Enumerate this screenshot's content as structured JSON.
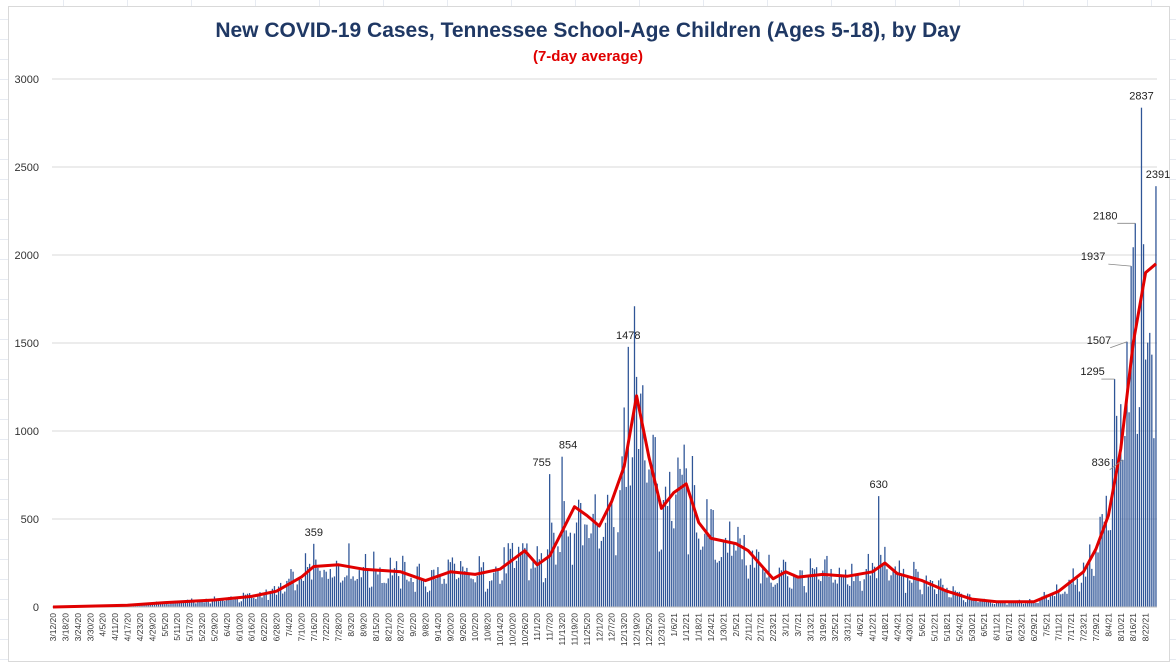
{
  "chart_data": {
    "type": "bar",
    "title": "New COVID-19 Cases, Tennessee School-Age Children (Ages 5-18), by Day",
    "subtitle": "(7-day average)",
    "xlabel": "",
    "ylabel": "",
    "ylim": [
      0,
      3000
    ],
    "yticks": [
      0,
      500,
      1000,
      1500,
      2000,
      2500,
      3000
    ],
    "grid": true,
    "legend": "none",
    "x_start": "3/12/20",
    "x_end": "8/27/21",
    "x_tick_labels": [
      "3/12/20",
      "3/18/20",
      "3/24/20",
      "3/30/20",
      "4/5/20",
      "4/11/20",
      "4/17/20",
      "4/23/20",
      "4/29/20",
      "5/5/20",
      "5/11/20",
      "5/17/20",
      "5/23/20",
      "5/29/20",
      "6/4/20",
      "6/10/20",
      "6/16/20",
      "6/22/20",
      "6/28/20",
      "7/4/20",
      "7/10/20",
      "7/16/20",
      "7/22/20",
      "7/28/20",
      "8/3/20",
      "8/9/20",
      "8/15/20",
      "8/21/20",
      "8/27/20",
      "9/2/20",
      "9/8/20",
      "9/14/20",
      "9/20/20",
      "9/26/20",
      "10/2/20",
      "10/8/20",
      "10/14/20",
      "10/20/20",
      "10/26/20",
      "11/1/20",
      "11/7/20",
      "11/13/20",
      "11/19/20",
      "11/25/20",
      "12/1/20",
      "12/7/20",
      "12/13/20",
      "12/19/20",
      "12/25/20",
      "12/31/20",
      "1/6/21",
      "1/12/21",
      "1/18/21",
      "1/24/21",
      "1/30/21",
      "2/5/21",
      "2/11/21",
      "2/17/21",
      "2/23/21",
      "3/1/21",
      "3/7/21",
      "3/13/21",
      "3/19/21",
      "3/25/21",
      "3/31/21",
      "4/6/21",
      "4/12/21",
      "4/18/21",
      "4/24/21",
      "4/30/21",
      "5/6/21",
      "5/12/21",
      "5/18/21",
      "5/24/21",
      "5/30/21",
      "6/5/21",
      "6/11/21",
      "6/17/21",
      "6/23/21",
      "6/29/21",
      "7/5/21",
      "7/11/21",
      "7/17/21",
      "7/23/21",
      "7/29/21",
      "8/4/21",
      "8/10/21",
      "8/16/21",
      "8/22/21"
    ],
    "daily_profile": [
      [
        "3/12/20",
        0
      ],
      [
        "3/30/20",
        5
      ],
      [
        "4/17/20",
        10
      ],
      [
        "5/5/20",
        25
      ],
      [
        "5/29/20",
        40
      ],
      [
        "6/16/20",
        60
      ],
      [
        "6/28/20",
        90
      ],
      [
        "7/10/20",
        170
      ],
      [
        "7/16/20",
        230
      ],
      [
        "7/22/20",
        235
      ],
      [
        "7/28/20",
        240
      ],
      [
        "8/9/20",
        215
      ],
      [
        "8/27/20",
        200
      ],
      [
        "9/8/20",
        150
      ],
      [
        "9/20/20",
        200
      ],
      [
        "10/2/20",
        185
      ],
      [
        "10/14/20",
        215
      ],
      [
        "10/26/20",
        320
      ],
      [
        "11/1/20",
        240
      ],
      [
        "11/7/20",
        290
      ],
      [
        "11/19/20",
        570
      ],
      [
        "11/25/20",
        520
      ],
      [
        "12/1/20",
        460
      ],
      [
        "12/7/20",
        600
      ],
      [
        "12/13/20",
        800
      ],
      [
        "12/19/20",
        1200
      ],
      [
        "12/25/20",
        850
      ],
      [
        "12/31/20",
        560
      ],
      [
        "1/6/21",
        650
      ],
      [
        "1/12/21",
        700
      ],
      [
        "1/18/21",
        480
      ],
      [
        "1/24/21",
        390
      ],
      [
        "2/5/21",
        360
      ],
      [
        "2/11/21",
        320
      ],
      [
        "2/23/21",
        160
      ],
      [
        "3/1/21",
        200
      ],
      [
        "3/7/21",
        170
      ],
      [
        "3/19/21",
        185
      ],
      [
        "3/31/21",
        175
      ],
      [
        "4/12/21",
        200
      ],
      [
        "4/18/21",
        250
      ],
      [
        "4/24/21",
        190
      ],
      [
        "5/6/21",
        150
      ],
      [
        "5/18/21",
        90
      ],
      [
        "5/30/21",
        45
      ],
      [
        "6/11/21",
        30
      ],
      [
        "6/29/21",
        30
      ],
      [
        "7/11/21",
        90
      ],
      [
        "7/23/21",
        200
      ],
      [
        "7/29/21",
        330
      ],
      [
        "8/4/21",
        520
      ],
      [
        "8/10/21",
        900
      ],
      [
        "8/16/21",
        1500
      ],
      [
        "8/22/21",
        1900
      ],
      [
        "8/27/21",
        1950
      ]
    ],
    "daily_spikes": [
      [
        "7/16/20",
        359
      ],
      [
        "11/7/20",
        755
      ],
      [
        "11/13/20",
        854
      ],
      [
        "12/15/20",
        1478
      ],
      [
        "4/15/21",
        630
      ],
      [
        "8/7/21",
        1295
      ],
      [
        "8/11/21",
        836
      ],
      [
        "8/13/21",
        1507
      ],
      [
        "8/15/21",
        1937
      ],
      [
        "8/17/21",
        2180
      ],
      [
        "8/20/21",
        2837
      ],
      [
        "8/27/21",
        2391
      ]
    ],
    "series": [
      {
        "type": "line",
        "name": "7-day average",
        "points": [
          [
            "3/12/20",
            0
          ],
          [
            "3/30/20",
            5
          ],
          [
            "4/17/20",
            10
          ],
          [
            "5/5/20",
            25
          ],
          [
            "5/29/20",
            40
          ],
          [
            "6/16/20",
            60
          ],
          [
            "6/28/20",
            90
          ],
          [
            "7/10/20",
            170
          ],
          [
            "7/16/20",
            230
          ],
          [
            "7/22/20",
            235
          ],
          [
            "7/28/20",
            240
          ],
          [
            "8/9/20",
            215
          ],
          [
            "8/27/20",
            200
          ],
          [
            "9/8/20",
            150
          ],
          [
            "9/20/20",
            200
          ],
          [
            "10/2/20",
            185
          ],
          [
            "10/14/20",
            215
          ],
          [
            "10/26/20",
            320
          ],
          [
            "11/1/20",
            240
          ],
          [
            "11/7/20",
            290
          ],
          [
            "11/19/20",
            570
          ],
          [
            "11/25/20",
            520
          ],
          [
            "12/1/20",
            460
          ],
          [
            "12/7/20",
            600
          ],
          [
            "12/13/20",
            800
          ],
          [
            "12/19/20",
            1200
          ],
          [
            "12/25/20",
            850
          ],
          [
            "12/31/20",
            560
          ],
          [
            "1/6/21",
            650
          ],
          [
            "1/12/21",
            700
          ],
          [
            "1/18/21",
            480
          ],
          [
            "1/24/21",
            390
          ],
          [
            "2/5/21",
            360
          ],
          [
            "2/11/21",
            320
          ],
          [
            "2/23/21",
            160
          ],
          [
            "3/1/21",
            200
          ],
          [
            "3/7/21",
            170
          ],
          [
            "3/19/21",
            185
          ],
          [
            "3/31/21",
            175
          ],
          [
            "4/12/21",
            200
          ],
          [
            "4/18/21",
            250
          ],
          [
            "4/24/21",
            190
          ],
          [
            "5/6/21",
            150
          ],
          [
            "5/18/21",
            90
          ],
          [
            "5/30/21",
            45
          ],
          [
            "6/11/21",
            30
          ],
          [
            "6/29/21",
            30
          ],
          [
            "7/11/21",
            90
          ],
          [
            "7/23/21",
            200
          ],
          [
            "7/29/21",
            330
          ],
          [
            "8/4/21",
            520
          ],
          [
            "8/10/21",
            900
          ],
          [
            "8/16/21",
            1500
          ],
          [
            "8/22/21",
            1900
          ],
          [
            "8/27/21",
            1950
          ]
        ]
      }
    ],
    "data_labels": [
      {
        "date": "7/16/20",
        "value": 359,
        "text": "359"
      },
      {
        "date": "11/7/20",
        "value": 755,
        "text": "755"
      },
      {
        "date": "11/13/20",
        "value": 854,
        "text": "854"
      },
      {
        "date": "12/15/20",
        "value": 1478,
        "text": "1478"
      },
      {
        "date": "4/15/21",
        "value": 630,
        "text": "630"
      },
      {
        "date": "8/7/21",
        "value": 1295,
        "text": "1295"
      },
      {
        "date": "8/11/21",
        "value": 836,
        "text": "836"
      },
      {
        "date": "8/13/21",
        "value": 1507,
        "text": "1507"
      },
      {
        "date": "8/15/21",
        "value": 1937,
        "text": "1937"
      },
      {
        "date": "8/17/21",
        "value": 2180,
        "text": "2180"
      },
      {
        "date": "8/20/21",
        "value": 2837,
        "text": "2837"
      },
      {
        "date": "8/27/21",
        "value": 2391,
        "text": "2391"
      }
    ],
    "colors": {
      "bars": "#2f5597",
      "line": "#e00000",
      "title": "#1f3864",
      "subtitle": "#e00000",
      "gridlines": "#d9d9d9"
    }
  }
}
